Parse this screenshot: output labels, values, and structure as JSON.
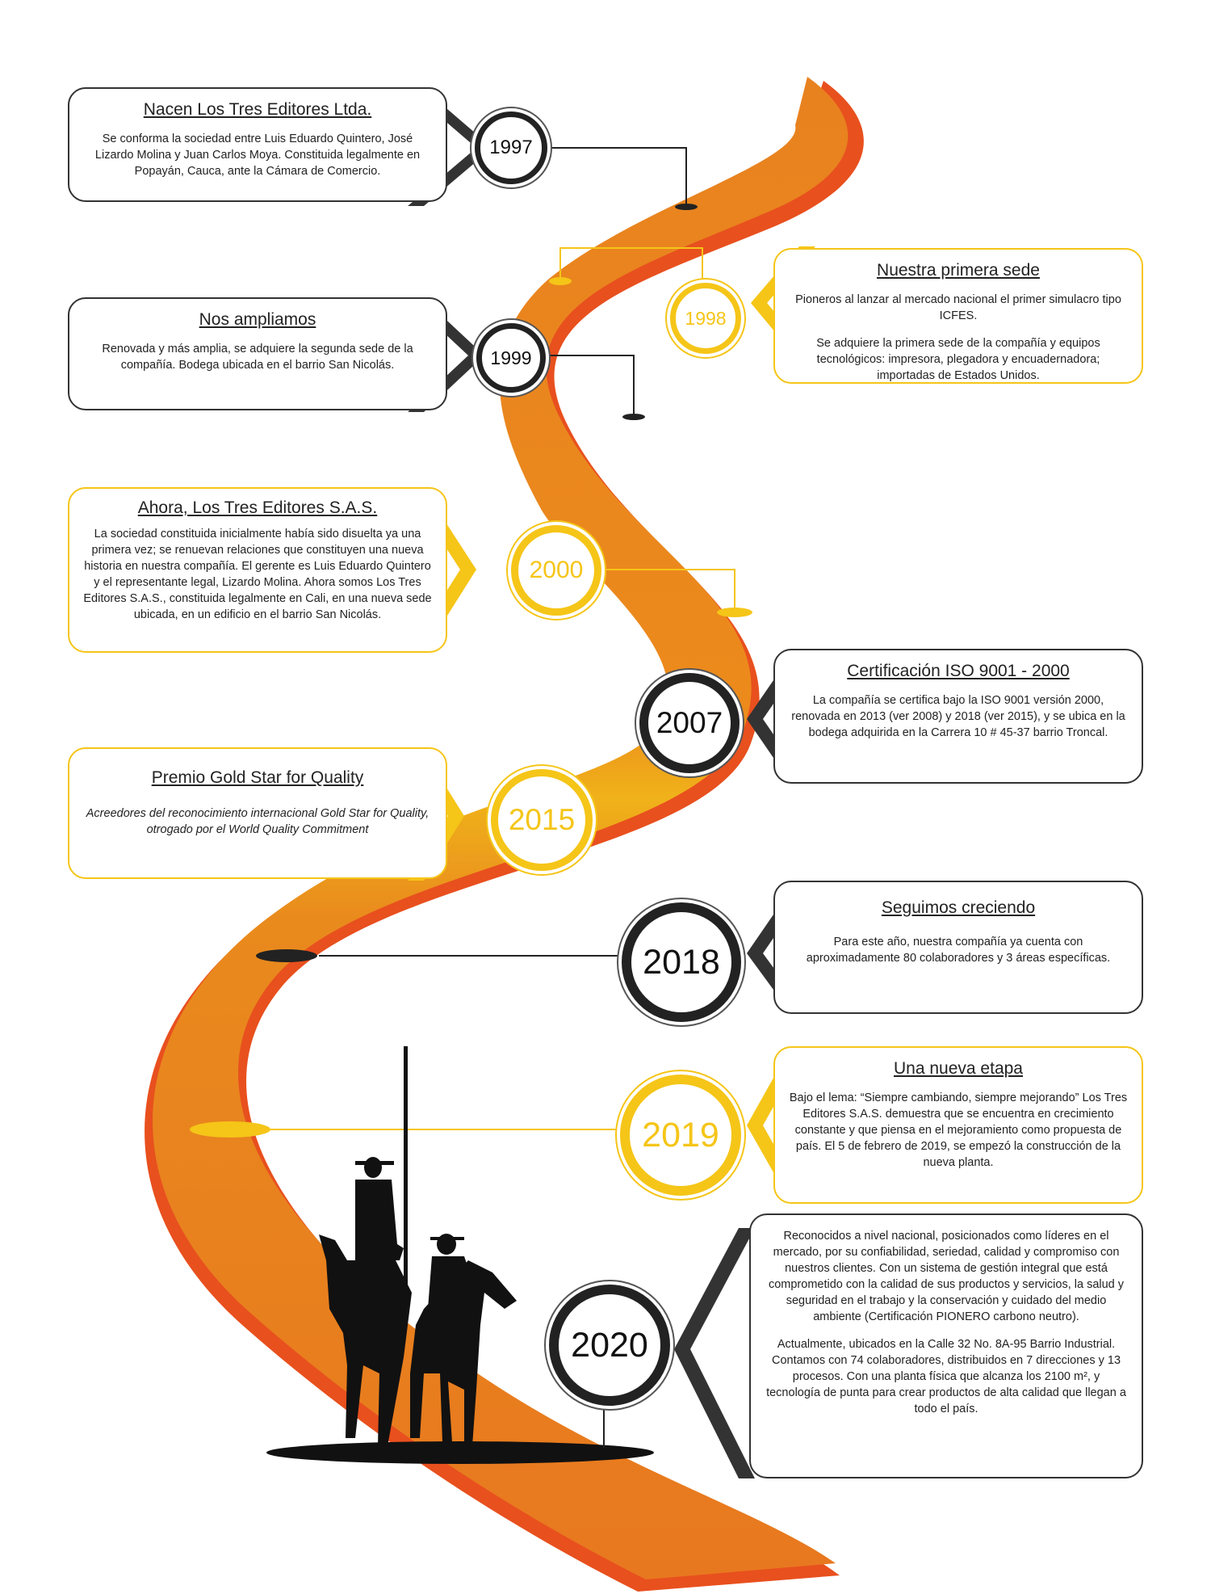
{
  "events": [
    {
      "year": "1997",
      "title": "Nacen Los Tres Editores Ltda.",
      "text": "Se conforma la sociedad entre Luis Eduardo Quintero, José Lizardo Molina y Juan Carlos Moya. Constituida legalmente en Popayán, Cauca, ante la Cámara de Comercio."
    },
    {
      "year": "1998",
      "title": "Nuestra primera sede",
      "text": "Pioneros al lanzar al mercado nacional el primer simulacro tipo ICFES.",
      "text2": "Se adquiere la primera sede de la compañía y equipos tecnológicos: impresora, plegadora y encuadernadora; importadas de Estados Unidos."
    },
    {
      "year": "1999",
      "title": "Nos ampliamos",
      "text": "Renovada y más amplia, se adquiere la segunda sede de la compañía. Bodega ubicada en el barrio San Nicolás."
    },
    {
      "year": "2000",
      "title": "Ahora, Los Tres Editores S.A.S.",
      "text": "La sociedad constituida inicialmente había sido disuelta ya una primera vez; se renuevan relaciones que constituyen una nueva historia en nuestra compañía. El gerente es Luis Eduardo Quintero y el representante legal, Lizardo Molina. Ahora somos Los Tres Editores S.A.S., constituida legalmente en Cali, en una nueva sede ubicada, en un edificio en el barrio San Nicolás."
    },
    {
      "year": "2007",
      "title": "Certificación ISO 9001 - 2000",
      "text": "La compañía se certifica bajo la ISO 9001 versión 2000, renovada en 2013 (ver 2008) y 2018 (ver 2015), y se ubica en la bodega adquirida en la Carrera 10 # 45-37 barrio Troncal."
    },
    {
      "year": "2015",
      "title": "Premio Gold Star for Quality",
      "text": "Acreedores del reconocimiento internacional Gold Star for Quality, otrogado por el World Quality Commitment"
    },
    {
      "year": "2018",
      "title": "Seguimos creciendo",
      "text": "Para este año, nuestra compañía ya cuenta con aproximadamente 80 colaboradores y 3 áreas específicas."
    },
    {
      "year": "2019",
      "title": "Una nueva etapa",
      "text": "Bajo el lema: “Siempre cambiando, siempre mejorando” Los Tres Editores S.A.S. demuestra que se encuentra en crecimiento constante y que piensa en el mejoramiento como propuesta de país. El 5 de febrero de 2019, se empezó la construcción de la nueva planta."
    },
    {
      "year": "2020",
      "text": "Reconocidos a nivel nacional, posicionados como líderes en el mercado, por su confiabilidad, seriedad, calidad y compromiso con nuestros clientes. Con un sistema de gestión integral que está comprometido con la calidad de sus productos y servicios, la salud y seguridad en el trabajo y la conservación y cuidado del medio ambiente (Certificación PIONERO carbono neutro).",
      "text2": "Actualmente, ubicados en la Calle 32 No. 8A-95 Barrio Industrial. Contamos con 74 colaboradores, distribuidos en 7 direcciones y 13 procesos. Con una planta física que alcanza los 2100 m², y tecnología de punta para crear productos de alta calidad que llegan a todo el país."
    }
  ],
  "colors": {
    "road": "#e8821f",
    "road_edge": "#e8501e",
    "gold": "#f5c518",
    "dark": "#222222"
  }
}
